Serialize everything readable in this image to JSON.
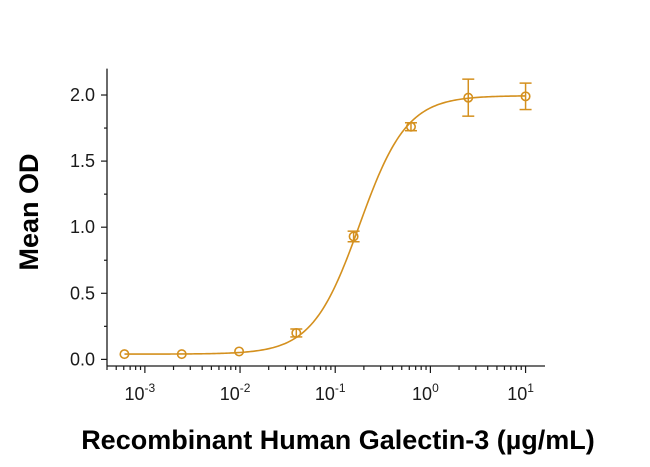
{
  "chart_data": {
    "type": "scatter",
    "title": "",
    "xlabel": "Recombinant Human Galectin-3 (µg/mL)",
    "ylabel": "Mean OD",
    "x_scale": "log",
    "xlim": [
      0.0004,
      16
    ],
    "ylim": [
      -0.05,
      2.28
    ],
    "x_ticks": [
      {
        "value": 0.001,
        "base": "10",
        "exp": "-3"
      },
      {
        "value": 0.01,
        "base": "10",
        "exp": "-2"
      },
      {
        "value": 0.1,
        "base": "10",
        "exp": "-1"
      },
      {
        "value": 1,
        "base": "10",
        "exp": "0"
      },
      {
        "value": 10,
        "base": "10",
        "exp": "1"
      }
    ],
    "y_ticks": [
      {
        "value": 0.0,
        "label": "0.0"
      },
      {
        "value": 0.5,
        "label": "0.5"
      },
      {
        "value": 1.0,
        "label": "1.0"
      },
      {
        "value": 1.5,
        "label": "1.5"
      },
      {
        "value": 2.0,
        "label": "2.0"
      }
    ],
    "series": [
      {
        "color": "#D4901E",
        "marker": "open-circle",
        "fit": "four-parameter-logistic",
        "points": [
          {
            "x": 0.00061,
            "y": 0.04,
            "err": 0.0
          },
          {
            "x": 0.00244,
            "y": 0.04,
            "err": 0.0
          },
          {
            "x": 0.00977,
            "y": 0.06,
            "err": 0.0
          },
          {
            "x": 0.039,
            "y": 0.2,
            "err": 0.03
          },
          {
            "x": 0.156,
            "y": 0.93,
            "err": 0.04
          },
          {
            "x": 0.625,
            "y": 1.76,
            "err": 0.03
          },
          {
            "x": 2.5,
            "y": 1.98,
            "err": 0.14
          },
          {
            "x": 10,
            "y": 1.99,
            "err": 0.1
          }
        ]
      }
    ],
    "grid": false,
    "legend": "none"
  }
}
